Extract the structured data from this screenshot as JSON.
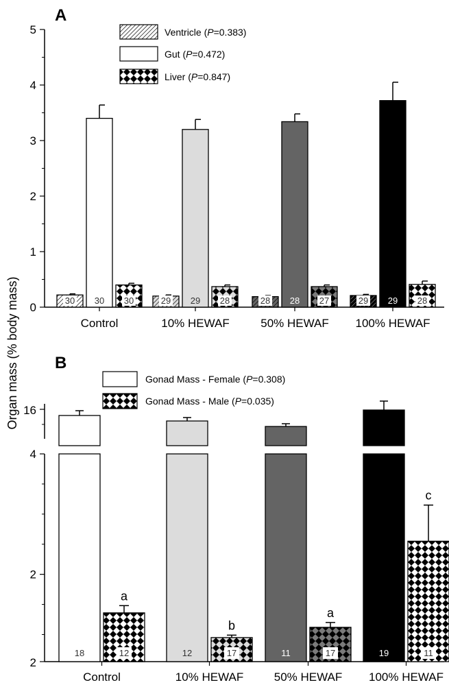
{
  "ylabel": "Organ mass (% body mass)",
  "chart_data": [
    {
      "panel": "A",
      "type": "bar",
      "categories": [
        "Control",
        "10% HEWAF",
        "50% HEWAF",
        "100% HEWAF"
      ],
      "ylim": [
        0,
        5
      ],
      "yticks": [
        "0",
        "1",
        "2",
        "3",
        "4",
        "5"
      ],
      "legend_position": "top-center",
      "legend": [
        {
          "name": "Ventricle",
          "p_label": "P",
          "p_value": "=0.383",
          "p_close": ")",
          "pattern": "hatch"
        },
        {
          "name": "Gut",
          "p_label": "P",
          "p_value": "=0.472",
          "p_close": ")",
          "pattern": "solid"
        },
        {
          "name": "Liver",
          "p_label": "P",
          "p_value": "=0.847",
          "p_close": ")",
          "pattern": "checker"
        }
      ],
      "series": [
        {
          "name": "Ventricle",
          "values": [
            0.22,
            0.2,
            0.19,
            0.21
          ],
          "errors": [
            0.02,
            0.02,
            0.02,
            0.02
          ],
          "n": [
            "30",
            "29",
            "28",
            "29"
          ]
        },
        {
          "name": "Gut",
          "values": [
            3.4,
            3.2,
            3.34,
            3.72
          ],
          "errors": [
            0.24,
            0.18,
            0.14,
            0.33
          ],
          "n": [
            "30",
            "29",
            "28",
            "29"
          ]
        },
        {
          "name": "Liver",
          "values": [
            0.4,
            0.37,
            0.37,
            0.41
          ],
          "errors": [
            0.03,
            0.03,
            0.03,
            0.06
          ],
          "n": [
            "30",
            "28",
            "27",
            "28"
          ]
        }
      ],
      "group_fills": [
        "#ffffff",
        "#dcdcdc",
        "#646464",
        "#000000"
      ]
    },
    {
      "panel": "B",
      "type": "bar",
      "categories": [
        "Control",
        "10% HEWAF",
        "50% HEWAF",
        "100% HEWAF"
      ],
      "axis_break": true,
      "upper_yticks": [
        "16"
      ],
      "lower_yticks": [
        "4",
        "2",
        "2"
      ],
      "legend_position": "top-left",
      "legend": [
        {
          "name": "Gonad Mass - Female",
          "p_label": "P",
          "p_value": "=0.308",
          "p_close": ")",
          "pattern": "solid"
        },
        {
          "name": "Gonad Mass - Male",
          "p_label": "P",
          "p_value": "=0.035",
          "p_close": ")",
          "pattern": "checker"
        }
      ],
      "series": [
        {
          "name": "Gonad Mass - Female",
          "values": [
            12.5,
            11.6,
            11.0,
            13.5
          ],
          "errors": [
            0.7,
            0.5,
            0.4,
            1.5
          ],
          "n": [
            "18",
            "12",
            "11",
            "19"
          ]
        },
        {
          "name": "Gonad Mass - Male",
          "values": [
            1.36,
            0.95,
            1.12,
            2.55
          ],
          "errors": [
            0.12,
            0.04,
            0.08,
            0.6
          ],
          "n": [
            "12",
            "17",
            "17",
            "11"
          ]
        }
      ],
      "significance": [
        "a",
        "b",
        "a",
        "c"
      ],
      "group_fills": [
        "#ffffff",
        "#dcdcdc",
        "#646464",
        "#000000"
      ]
    }
  ]
}
